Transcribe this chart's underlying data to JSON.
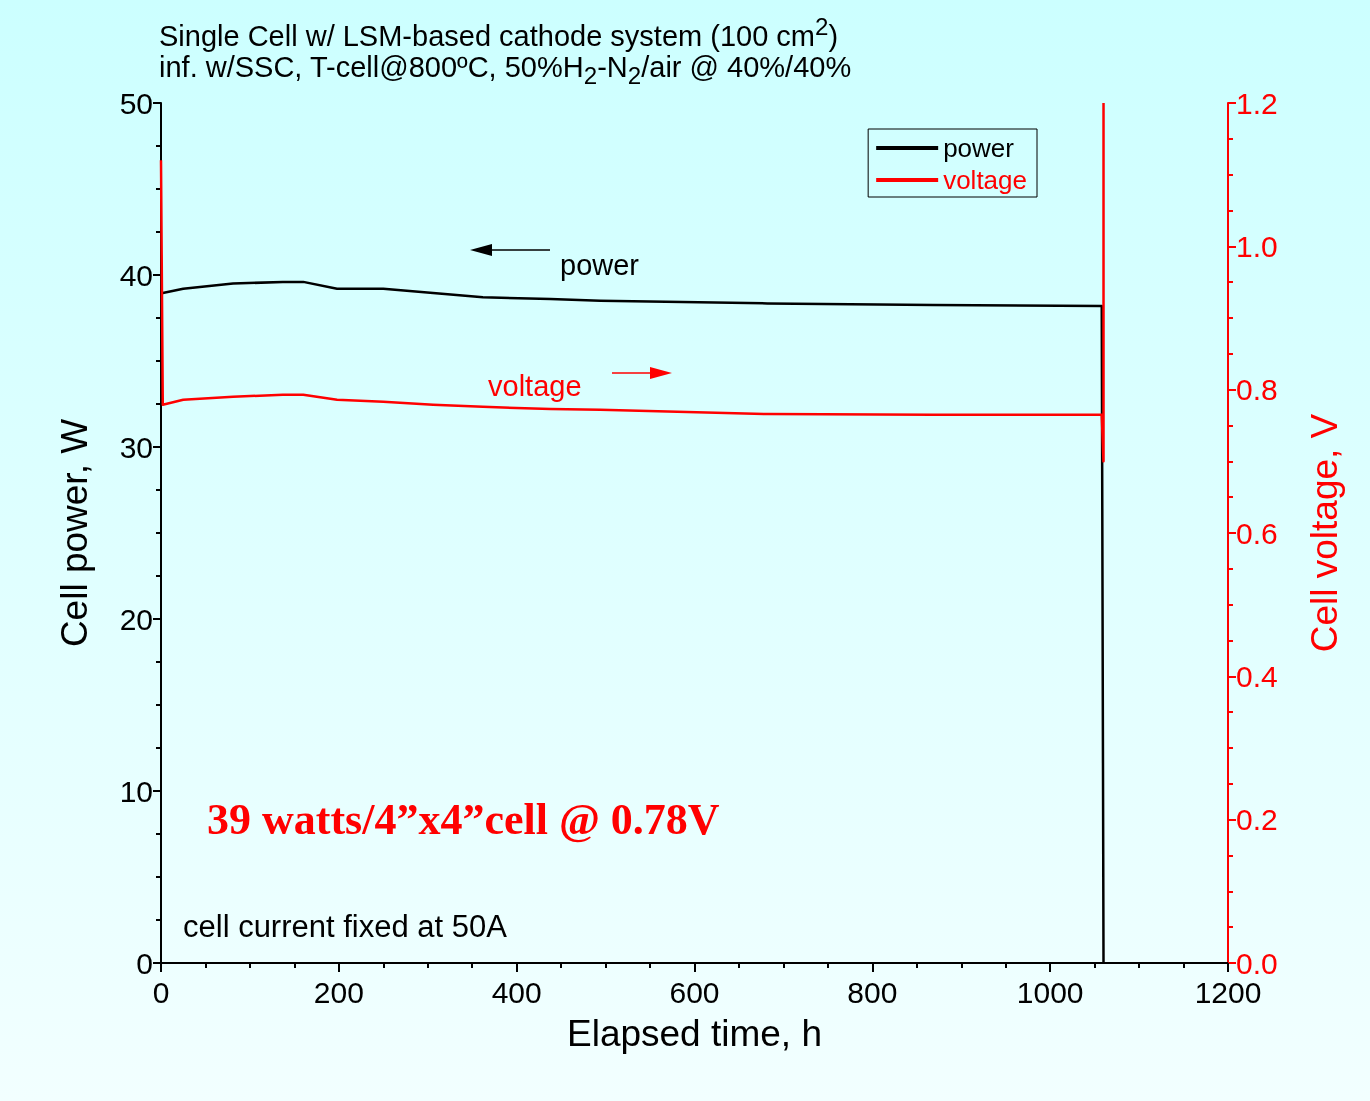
{
  "chart_data": {
    "type": "line",
    "title": "Single Cell w/ LSM-based cathode system (100 cm$^{2}$)",
    "subtitle": "inf. w/SSC, T-cell@800ºC, 50%H$_{2}$-N$_{2}$/air @ 40%/40%",
    "xlabel": "Elapsed time, h",
    "ylabel": "Cell power, W",
    "y2label": "Cell voltage, V",
    "series": [
      {
        "name": "power",
        "color": "#000000",
        "x": [
          2,
          25,
          81,
          137,
          160,
          198,
          250,
          306,
          362,
          438,
          494,
          682,
          868,
          1058,
          1060
        ],
        "values": [
          38.95,
          39.2,
          39.5,
          39.6,
          39.6,
          39.2,
          39.2,
          38.95,
          38.7,
          38.6,
          38.5,
          38.35,
          38.25,
          38.2,
          0
        ]
      },
      {
        "name": "voltage",
        "color": "#ff0000",
        "axis": "y2",
        "x": [
          0,
          2,
          25,
          81,
          137,
          160,
          198,
          250,
          306,
          362,
          438,
          494,
          682,
          868,
          1058,
          1060,
          1060
        ],
        "values": [
          1.12,
          0.779,
          0.786,
          0.79,
          0.793,
          0.793,
          0.786,
          0.783,
          0.779,
          0.776,
          0.773,
          0.772,
          0.766,
          0.765,
          0.765,
          0.7,
          1.2
        ]
      }
    ],
    "xlim": [
      0,
      1200
    ],
    "xticks": [
      0,
      200,
      400,
      600,
      800,
      1000,
      1200
    ],
    "ylim": [
      0,
      50
    ],
    "yticks": [
      0,
      10,
      20,
      30,
      40,
      50
    ],
    "y2lim": [
      0,
      1.2
    ],
    "y2ticks": [
      {
        "value": 0,
        "label": "0.0"
      },
      {
        "value": 0.2,
        "label": "0.2"
      },
      {
        "value": 0.4,
        "label": "0.4"
      },
      {
        "value": 0.6,
        "label": "0.6"
      },
      {
        "value": 0.8,
        "label": "0.8"
      },
      {
        "value": 1.0,
        "label": "1.0"
      },
      {
        "value": 1.2,
        "label": "1.2"
      }
    ],
    "annotations": [
      "power",
      "voltage",
      "39 watts/4”x4”cell @ 0.78V",
      "cell current fixed at 50A"
    ],
    "legend": "top right",
    "grid": false,
    "marker": "none",
    "line_style": "solid"
  }
}
